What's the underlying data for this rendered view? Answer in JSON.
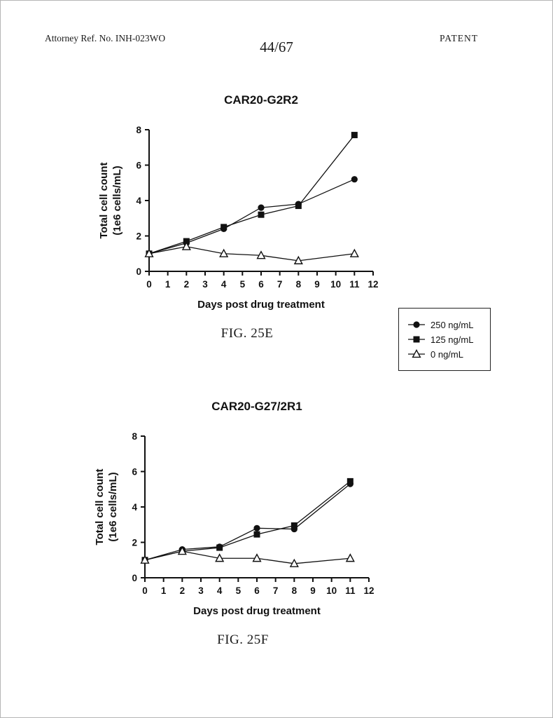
{
  "header": {
    "attorney_ref": "Attorney Ref. No. INH-023WO",
    "page_number": "44/67",
    "doc_label": "PATENT"
  },
  "legend": {
    "items": [
      {
        "label": "250 ng/mL",
        "marker": "circle"
      },
      {
        "label": "125 ng/mL",
        "marker": "square"
      },
      {
        "label": "0 ng/mL",
        "marker": "triangle"
      }
    ]
  },
  "chart_data": [
    {
      "type": "line",
      "title": "CAR20-G2R2",
      "fig_label": "FIG. 25E",
      "xlabel": "Days post drug treatment",
      "ylabel": "Total cell count\n(1e6 cells/mL)",
      "xlim": [
        0,
        12
      ],
      "ylim": [
        0,
        8
      ],
      "xticks": [
        0,
        1,
        2,
        3,
        4,
        5,
        6,
        7,
        8,
        9,
        10,
        11,
        12
      ],
      "yticks": [
        0,
        2,
        4,
        6,
        8
      ],
      "x": [
        0,
        2,
        4,
        6,
        8,
        11
      ],
      "grid": false,
      "legend_position": "outside-right",
      "series": [
        {
          "name": "250 ng/mL",
          "marker": "circle",
          "values": [
            1.0,
            1.6,
            2.4,
            3.6,
            3.8,
            5.2
          ]
        },
        {
          "name": "125 ng/mL",
          "marker": "square",
          "values": [
            1.0,
            1.7,
            2.5,
            3.2,
            3.7,
            7.7
          ]
        },
        {
          "name": "0 ng/mL",
          "marker": "triangle",
          "values": [
            1.0,
            1.4,
            1.0,
            0.9,
            0.6,
            1.0
          ]
        }
      ]
    },
    {
      "type": "line",
      "title": "CAR20-G27/2R1",
      "fig_label": "FIG. 25F",
      "xlabel": "Days post drug treatment",
      "ylabel": "Total cell count\n(1e6 cells/mL)",
      "xlim": [
        0,
        12
      ],
      "ylim": [
        0,
        8
      ],
      "xticks": [
        0,
        1,
        2,
        3,
        4,
        5,
        6,
        7,
        8,
        9,
        10,
        11,
        12
      ],
      "yticks": [
        0,
        2,
        4,
        6,
        8
      ],
      "x": [
        0,
        2,
        4,
        6,
        8,
        11
      ],
      "grid": false,
      "legend_position": "none",
      "series": [
        {
          "name": "250 ng/mL",
          "marker": "circle",
          "values": [
            1.0,
            1.6,
            1.75,
            2.8,
            2.75,
            5.3
          ]
        },
        {
          "name": "125 ng/mL",
          "marker": "square",
          "values": [
            1.0,
            1.5,
            1.7,
            2.45,
            2.95,
            5.45
          ]
        },
        {
          "name": "0 ng/mL",
          "marker": "triangle",
          "values": [
            1.0,
            1.5,
            1.1,
            1.1,
            0.8,
            1.1
          ]
        }
      ]
    }
  ]
}
